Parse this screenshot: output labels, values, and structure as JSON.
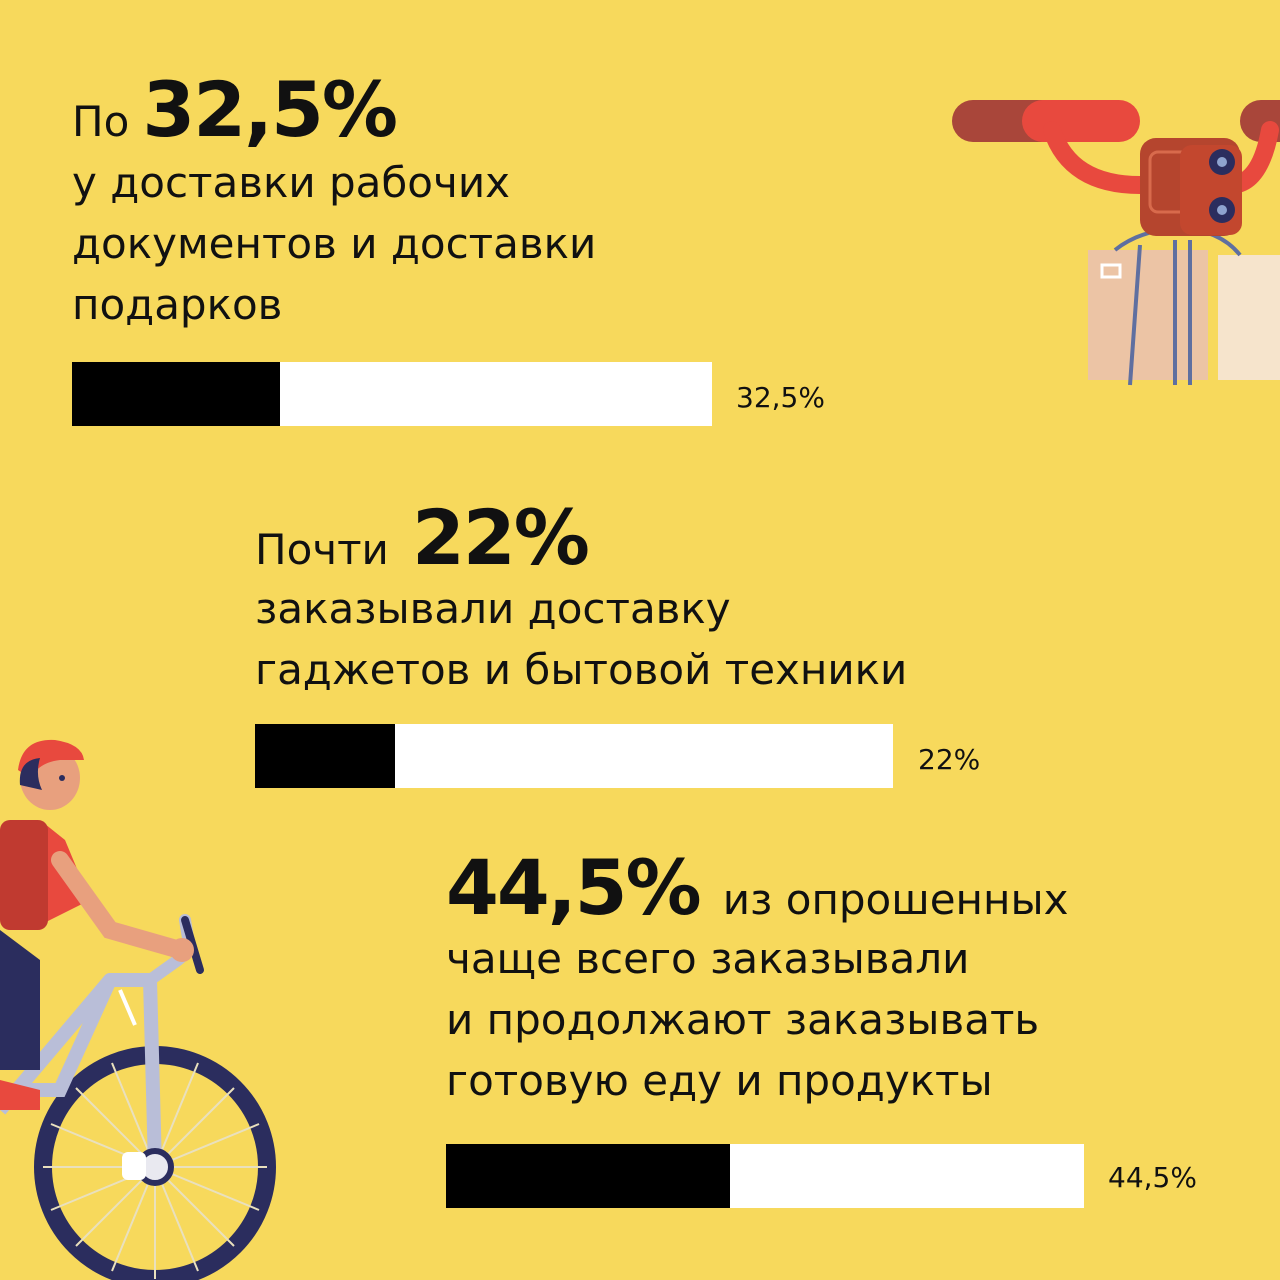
{
  "chart_data": {
    "type": "bar",
    "orientation": "horizontal",
    "xlim": [
      0,
      100
    ],
    "items": [
      {
        "lead": "По",
        "value_text": "32,5%",
        "after": "",
        "lines": [
          "у доставки рабочих",
          "документов и доставки",
          "подарков"
        ],
        "value": 32.5,
        "label": "32,5%"
      },
      {
        "lead": "Почти",
        "value_text": "22%",
        "after": "",
        "lines": [
          "заказывали доставку",
          "гаджетов и бытовой техники"
        ],
        "value": 22,
        "label": "22%"
      },
      {
        "lead": "",
        "value_text": "44,5%",
        "after": "из опрошенных",
        "lines": [
          "чаще всего заказывали",
          "и продолжают заказывать",
          "готовую еду и продукты"
        ],
        "value": 44.5,
        "label": "44,5%"
      }
    ]
  },
  "colors": {
    "background": "#F7D95C",
    "bar_fill": "#000000",
    "bar_track": "#FFFFFF"
  },
  "illustrations": [
    "delivery-drone-icon",
    "bicycle-courier-icon"
  ]
}
